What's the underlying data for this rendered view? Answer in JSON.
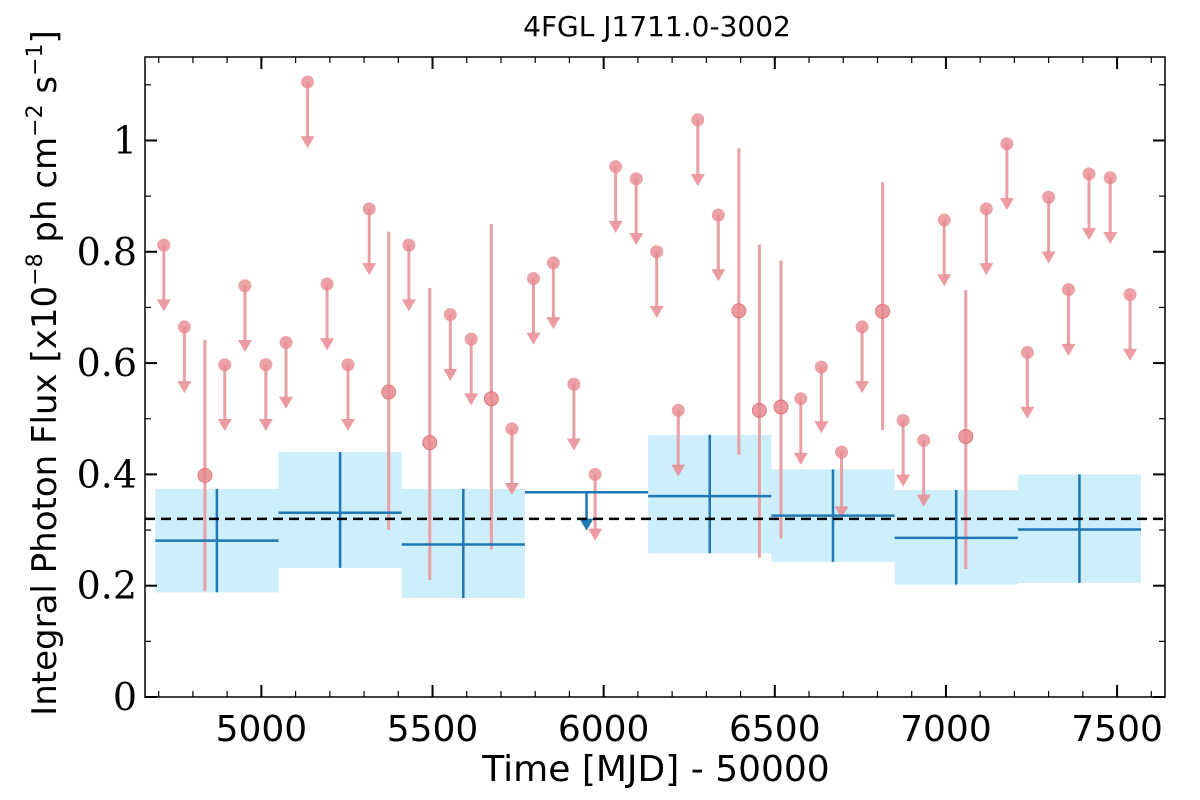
{
  "chart_data": {
    "type": "scatter",
    "title": "4FGL J1711.0-3002",
    "xlabel": "Time [MJD] - 50000",
    "ylabel_parts": {
      "main": "Integral Photon Flux [x10",
      "exp1": "−8",
      "mid": " ph cm",
      "exp2": "−2",
      "sp": " s",
      "exp3": "−1",
      "end": "]"
    },
    "xlim": [
      4660,
      7640
    ],
    "ylim": [
      0,
      1.15
    ],
    "x_ticks": [
      5000,
      5500,
      6000,
      6500,
      7000,
      7500
    ],
    "x_tick_labels": [
      "5000",
      "5500",
      "6000",
      "6500",
      "7000",
      "7500"
    ],
    "y_ticks": [
      0,
      0.2,
      0.4,
      0.6,
      0.8,
      1.0
    ],
    "y_tick_labels": [
      "0",
      "0.2",
      "0.4",
      "0.6",
      "0.8",
      "1"
    ],
    "mean_flux": 0.32,
    "colors": {
      "fine": "#e8a0a4",
      "fine_marker": "#e78a90",
      "coarse": "#1f77b4",
      "coarse_band": "#cdeefb",
      "mean_line": "#000000"
    },
    "fine_upper_limits": [
      {
        "x": 4715,
        "y": 0.812
      },
      {
        "x": 4775,
        "y": 0.665
      },
      {
        "x": 4893,
        "y": 0.597
      },
      {
        "x": 4952,
        "y": 0.739
      },
      {
        "x": 5013,
        "y": 0.597
      },
      {
        "x": 5072,
        "y": 0.637
      },
      {
        "x": 5135,
        "y": 1.105
      },
      {
        "x": 5192,
        "y": 0.742
      },
      {
        "x": 5253,
        "y": 0.597
      },
      {
        "x": 5315,
        "y": 0.877
      },
      {
        "x": 5431,
        "y": 0.812
      },
      {
        "x": 5552,
        "y": 0.687
      },
      {
        "x": 5613,
        "y": 0.643
      },
      {
        "x": 5732,
        "y": 0.482
      },
      {
        "x": 5795,
        "y": 0.752
      },
      {
        "x": 5853,
        "y": 0.78
      },
      {
        "x": 5913,
        "y": 0.562
      },
      {
        "x": 5975,
        "y": 0.4
      },
      {
        "x": 6035,
        "y": 0.953
      },
      {
        "x": 6095,
        "y": 0.931
      },
      {
        "x": 6155,
        "y": 0.8
      },
      {
        "x": 6218,
        "y": 0.515
      },
      {
        "x": 6275,
        "y": 1.037
      },
      {
        "x": 6335,
        "y": 0.866
      },
      {
        "x": 6576,
        "y": 0.536
      },
      {
        "x": 6636,
        "y": 0.593
      },
      {
        "x": 6695,
        "y": 0.44
      },
      {
        "x": 6755,
        "y": 0.665
      },
      {
        "x": 6875,
        "y": 0.497
      },
      {
        "x": 6935,
        "y": 0.461
      },
      {
        "x": 6995,
        "y": 0.857
      },
      {
        "x": 7118,
        "y": 0.877
      },
      {
        "x": 7178,
        "y": 0.994
      },
      {
        "x": 7238,
        "y": 0.619
      },
      {
        "x": 7300,
        "y": 0.898
      },
      {
        "x": 7358,
        "y": 0.732
      },
      {
        "x": 7418,
        "y": 0.94
      },
      {
        "x": 7480,
        "y": 0.933
      },
      {
        "x": 7538,
        "y": 0.723
      }
    ],
    "fine_detections": [
      {
        "x": 4835,
        "y": 0.398,
        "ylo": 0.19,
        "yhi": 0.642
      },
      {
        "x": 5372,
        "y": 0.548,
        "ylo": 0.3,
        "yhi": 0.836
      },
      {
        "x": 5492,
        "y": 0.457,
        "ylo": 0.21,
        "yhi": 0.735
      },
      {
        "x": 5672,
        "y": 0.536,
        "ylo": 0.265,
        "yhi": 0.85
      },
      {
        "x": 6395,
        "y": 0.694,
        "ylo": 0.435,
        "yhi": 0.986
      },
      {
        "x": 6455,
        "y": 0.515,
        "ylo": 0.25,
        "yhi": 0.813
      },
      {
        "x": 6518,
        "y": 0.521,
        "ylo": 0.285,
        "yhi": 0.784
      },
      {
        "x": 6815,
        "y": 0.693,
        "ylo": 0.48,
        "yhi": 0.925
      },
      {
        "x": 7058,
        "y": 0.468,
        "ylo": 0.23,
        "yhi": 0.731
      }
    ],
    "coarse_bins": [
      {
        "x0": 4690,
        "x1": 5050,
        "y": 0.281,
        "ylo": 0.188,
        "yhi": 0.374
      },
      {
        "x0": 5050,
        "x1": 5410,
        "y": 0.331,
        "ylo": 0.232,
        "yhi": 0.44
      },
      {
        "x0": 5410,
        "x1": 5770,
        "y": 0.274,
        "ylo": 0.178,
        "yhi": 0.374
      },
      {
        "x0": 6130,
        "x1": 6490,
        "y": 0.361,
        "ylo": 0.258,
        "yhi": 0.471
      },
      {
        "x0": 6490,
        "x1": 6850,
        "y": 0.326,
        "ylo": 0.243,
        "yhi": 0.409
      },
      {
        "x0": 6850,
        "x1": 7210,
        "y": 0.286,
        "ylo": 0.202,
        "yhi": 0.372
      },
      {
        "x0": 7210,
        "x1": 7570,
        "y": 0.301,
        "ylo": 0.205,
        "yhi": 0.4
      }
    ],
    "coarse_upper_limits": [
      {
        "x0": 5770,
        "x1": 6130,
        "y": 0.368
      }
    ]
  }
}
